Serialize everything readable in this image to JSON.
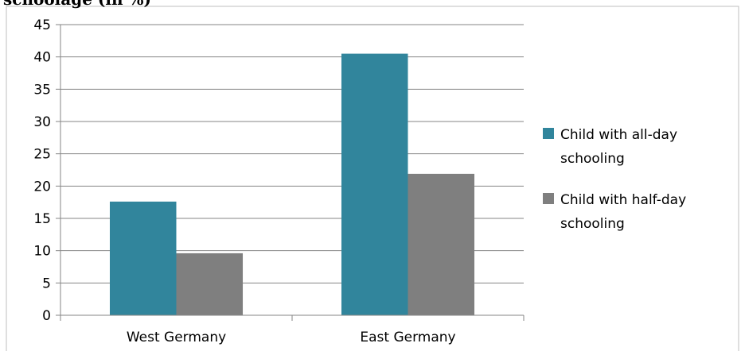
{
  "chart_data": {
    "type": "bar",
    "title": "schoolage (in %)",
    "categories": [
      "West Germany",
      "East Germany"
    ],
    "series": [
      {
        "name": "Child with all-day schooling",
        "values": [
          17.6,
          40.5
        ],
        "color": "#31859c"
      },
      {
        "name": "Child with half-day schooling",
        "values": [
          9.6,
          21.9
        ],
        "color": "#7f7f7f"
      }
    ],
    "ylim": [
      0,
      45
    ],
    "yticks": [
      0,
      5,
      10,
      15,
      20,
      25,
      30,
      35,
      40,
      45
    ],
    "grid": true,
    "legend": "right",
    "legend_lines": [
      [
        "Child with all-day",
        "schooling"
      ],
      [
        "Child with half-day",
        "schooling"
      ]
    ]
  }
}
